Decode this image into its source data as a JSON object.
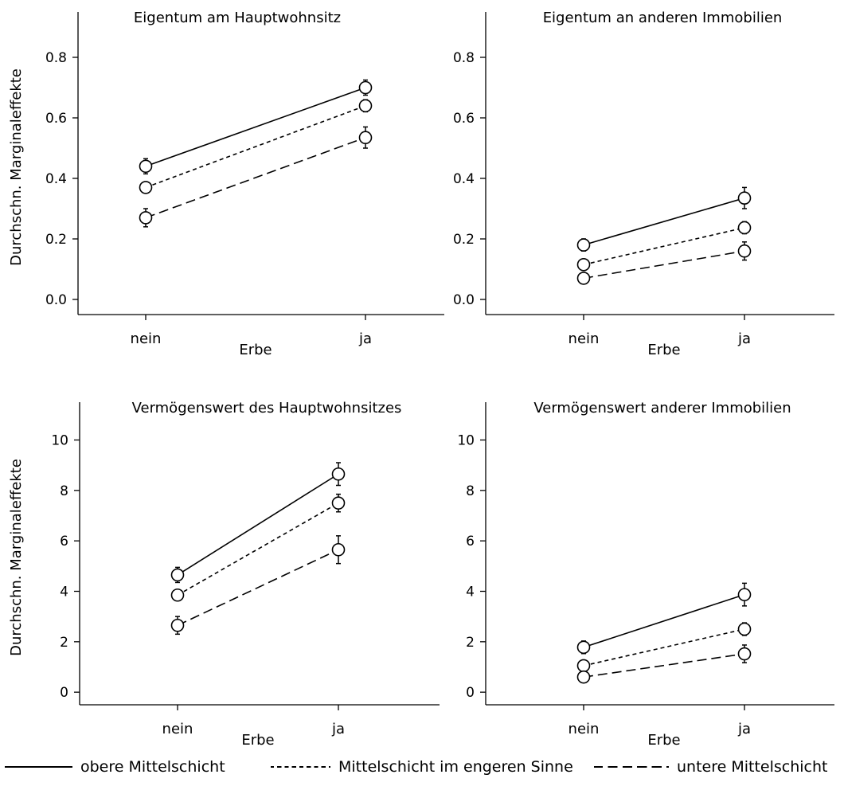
{
  "chart_data": [
    {
      "type": "line",
      "title": "Eigentum am Hauptwohnsitz",
      "xlabel": "Erbe",
      "ylabel": "Durchschn. Marginaleffekte",
      "categories": [
        "nein",
        "ja"
      ],
      "ylim": [
        -0.05,
        0.95
      ],
      "yticks": [
        "0.0",
        "0.2",
        "0.4",
        "0.6",
        "0.8"
      ],
      "series": [
        {
          "name": "obere Mittelschicht",
          "values": [
            0.44,
            0.7
          ],
          "err": [
            0.025,
            0.025
          ]
        },
        {
          "name": "Mittelschicht im engeren Sinne",
          "values": [
            0.37,
            0.64
          ],
          "err": [
            0.015,
            0.02
          ]
        },
        {
          "name": "untere Mittelschicht",
          "values": [
            0.27,
            0.535
          ],
          "err": [
            0.03,
            0.035
          ]
        }
      ]
    },
    {
      "type": "line",
      "title": "Eigentum an anderen Immobilien",
      "xlabel": "Erbe",
      "ylabel": "",
      "categories": [
        "nein",
        "ja"
      ],
      "ylim": [
        -0.05,
        0.95
      ],
      "yticks": [
        "0.0",
        "0.2",
        "0.4",
        "0.6",
        "0.8"
      ],
      "series": [
        {
          "name": "obere Mittelschicht",
          "values": [
            0.18,
            0.335
          ],
          "err": [
            0.02,
            0.035
          ]
        },
        {
          "name": "Mittelschicht im engeren Sinne",
          "values": [
            0.115,
            0.237
          ],
          "err": [
            0.01,
            0.02
          ]
        },
        {
          "name": "untere Mittelschicht",
          "values": [
            0.07,
            0.16
          ],
          "err": [
            0.01,
            0.03
          ]
        }
      ]
    },
    {
      "type": "line",
      "title": "Vermögenswert des Hauptwohnsitzes",
      "xlabel": "Erbe",
      "ylabel": "Durchschn. Marginaleffekte",
      "categories": [
        "nein",
        "ja"
      ],
      "ylim": [
        -0.5,
        11.5
      ],
      "yticks": [
        "0",
        "2",
        "4",
        "6",
        "8",
        "10"
      ],
      "series": [
        {
          "name": "obere Mittelschicht",
          "values": [
            4.65,
            8.65
          ],
          "err": [
            0.3,
            0.45
          ]
        },
        {
          "name": "Mittelschicht im engeren Sinne",
          "values": [
            3.85,
            7.5
          ],
          "err": [
            0.2,
            0.35
          ]
        },
        {
          "name": "untere Mittelschicht",
          "values": [
            2.65,
            5.65
          ],
          "err": [
            0.35,
            0.55
          ]
        }
      ]
    },
    {
      "type": "line",
      "title": "Vermögenswert anderer Immobilien",
      "xlabel": "Erbe",
      "ylabel": "",
      "categories": [
        "nein",
        "ja"
      ],
      "ylim": [
        -0.5,
        11.5
      ],
      "yticks": [
        "0",
        "2",
        "4",
        "6",
        "8",
        "10"
      ],
      "series": [
        {
          "name": "obere Mittelschicht",
          "values": [
            1.78,
            3.87
          ],
          "err": [
            0.25,
            0.45
          ]
        },
        {
          "name": "Mittelschicht im engeren Sinne",
          "values": [
            1.05,
            2.5
          ],
          "err": [
            0.15,
            0.25
          ]
        },
        {
          "name": "untere Mittelschicht",
          "values": [
            0.6,
            1.52
          ],
          "err": [
            0.1,
            0.35
          ]
        }
      ]
    }
  ],
  "legend": {
    "items": [
      {
        "label": "obere Mittelschicht",
        "style": "solid"
      },
      {
        "label": "Mittelschicht im engeren Sinne",
        "style": "dotted"
      },
      {
        "label": "untere Mittelschicht",
        "style": "dashed"
      }
    ]
  }
}
